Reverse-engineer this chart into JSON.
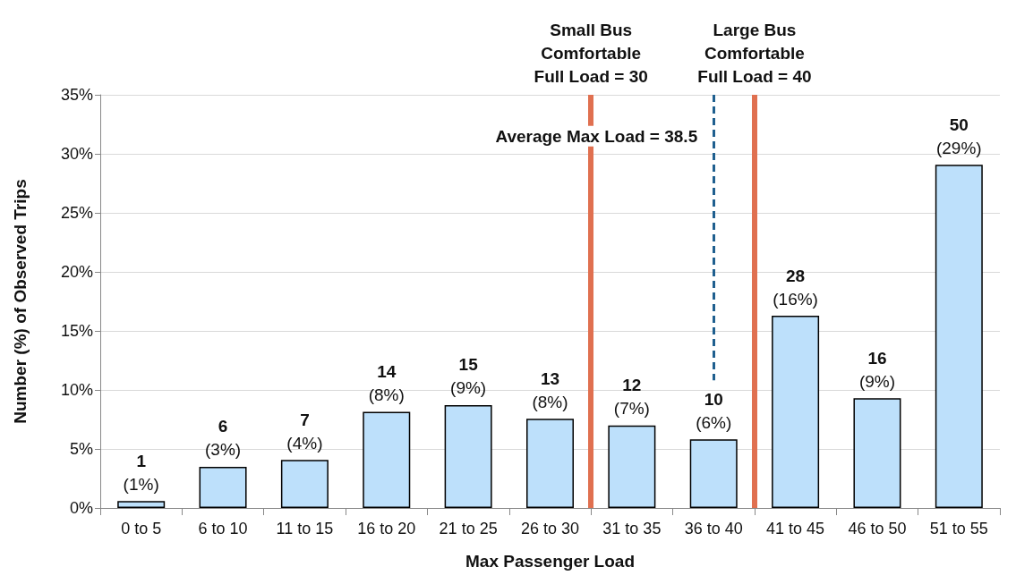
{
  "chart_data": {
    "type": "bar",
    "categories": [
      "0 to 5",
      "6 to 10",
      "11 to 15",
      "16 to 20",
      "21 to 25",
      "26 to 30",
      "31 to 35",
      "36 to 40",
      "41 to 45",
      "46 to 50",
      "51 to 55"
    ],
    "values": [
      0.58,
      3.49,
      4.07,
      8.14,
      8.72,
      7.56,
      6.98,
      5.81,
      16.28,
      9.3,
      29.07
    ],
    "value_labels": [
      "1\n(1%)",
      "6\n(3%)",
      "7\n(4%)",
      "14\n(8%)",
      "15\n(9%)",
      "13\n(8%)",
      "12\n(7%)",
      "10\n(6%)",
      "28\n(16%)",
      "16\n(9%)",
      "50\n(29%)"
    ],
    "color": "#bde0fb",
    "xlabel": "Max Passenger Load",
    "ylabel": "Number (%) of Observed Trips",
    "ylim": [
      0,
      35
    ],
    "yticks": [
      {
        "value": 0,
        "label": "0%"
      },
      {
        "value": 5,
        "label": "5%"
      },
      {
        "value": 10,
        "label": "10%"
      },
      {
        "value": 15,
        "label": "15%"
      },
      {
        "value": 20,
        "label": "20%"
      },
      {
        "value": 25,
        "label": "25%"
      },
      {
        "value": 30,
        "label": "30%"
      },
      {
        "value": 35,
        "label": "35%"
      }
    ],
    "grid": "y",
    "annotations": [
      "Small Bus\nComfortable\nFull Load = 30",
      "Large Bus\nComfortable\nFull Load = 40"
    ],
    "ref_lines": [
      {
        "axis": "x",
        "value": "36 to 40",
        "label": "Average Max Load = 38.5",
        "color": "#1f5f8f",
        "line_style": "dashed"
      }
    ]
  }
}
